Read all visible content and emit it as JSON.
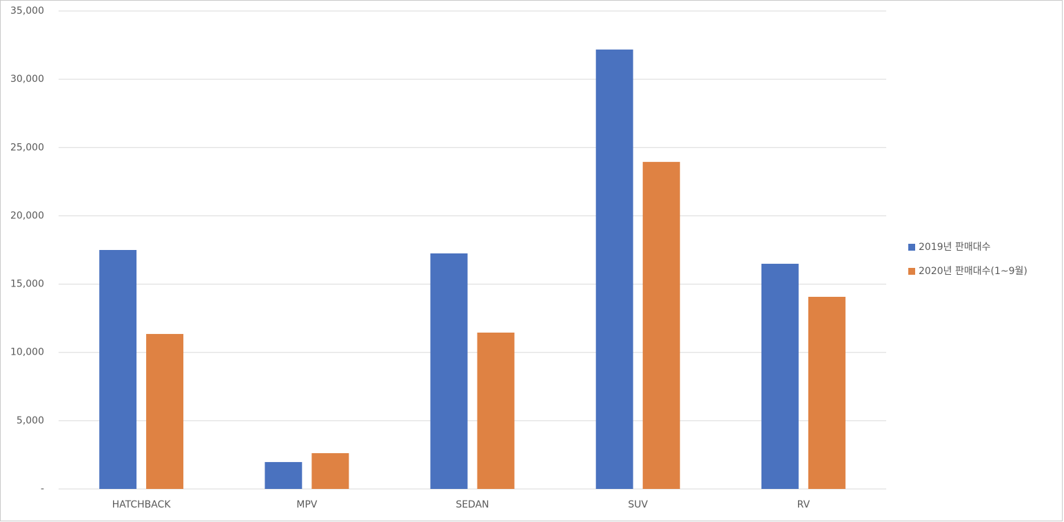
{
  "chart_data": {
    "type": "bar",
    "categories": [
      "HATCHBACK",
      "MPV",
      "SEDAN",
      "SUV",
      "RV"
    ],
    "series": [
      {
        "name": "2019년 판매대수",
        "color": "#4a72bf",
        "values": [
          17500,
          1970,
          17250,
          32180,
          16490
        ]
      },
      {
        "name": "2020년 판매대수(1~9월)",
        "color": "#df8243",
        "values": [
          11350,
          2620,
          11450,
          23950,
          14070
        ]
      }
    ],
    "ylim": [
      0,
      35000
    ],
    "yticks": [
      {
        "value": 0,
        "label": "-"
      },
      {
        "value": 5000,
        "label": "5,000"
      },
      {
        "value": 10000,
        "label": "10,000"
      },
      {
        "value": 15000,
        "label": "15,000"
      },
      {
        "value": 20000,
        "label": "20,000"
      },
      {
        "value": 25000,
        "label": "25,000"
      },
      {
        "value": 30000,
        "label": "30,000"
      },
      {
        "value": 35000,
        "label": "35,000"
      }
    ],
    "grid": true,
    "legend": "right"
  }
}
